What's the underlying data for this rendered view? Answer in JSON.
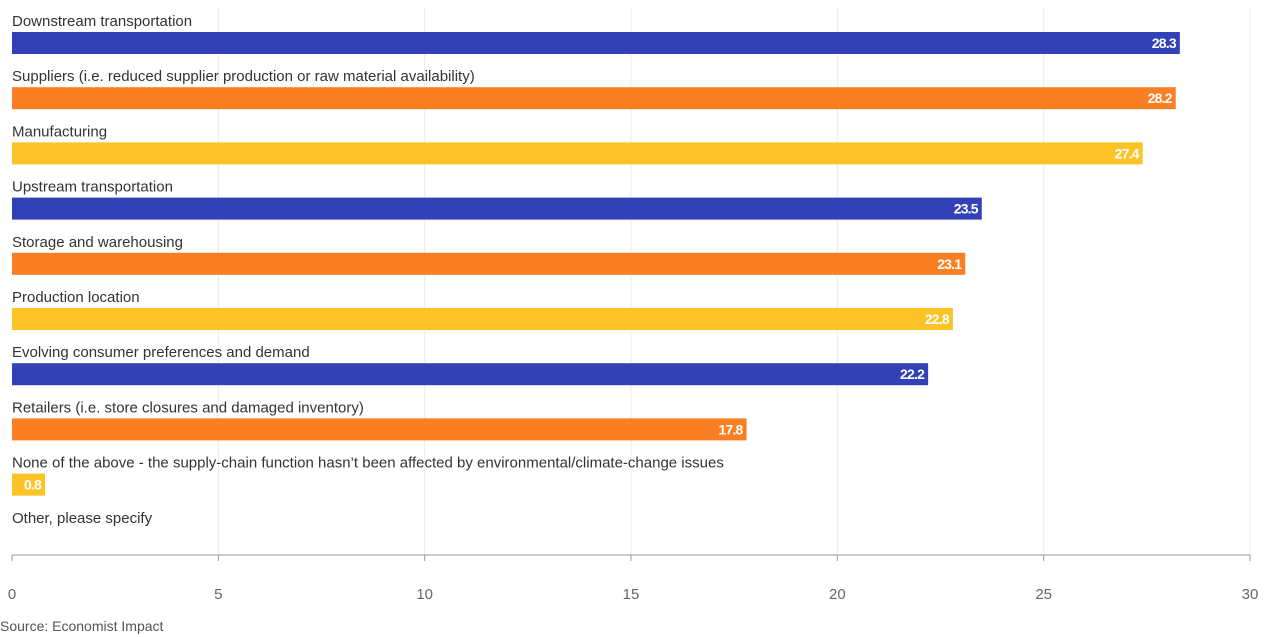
{
  "chart_data": {
    "type": "bar",
    "orientation": "horizontal",
    "categories": [
      "Downstream transportation",
      "Suppliers (i.e. reduced supplier production or raw material availability)",
      "Manufacturing",
      "Upstream transportation",
      "Storage and warehousing",
      "Production location",
      "Evolving consumer preferences and demand",
      "Retailers (i.e. store closures and damaged inventory)",
      "None of the above - the supply-chain function hasn’t been affected by environmental/climate-change issues",
      "Other, please specify"
    ],
    "values": [
      28.3,
      28.2,
      27.4,
      23.5,
      23.1,
      22.8,
      22.2,
      17.8,
      0.8,
      null
    ],
    "value_labels": [
      "28.3",
      "28.2",
      "27.4",
      "23.5",
      "23.1",
      "22.8",
      "22.2",
      "17.8",
      "0.8",
      ""
    ],
    "bar_colors": [
      "#3341b7",
      "#f97f22",
      "#fbc325",
      "#3341b7",
      "#f97f22",
      "#fbc325",
      "#3341b7",
      "#f97f22",
      "#fbc325",
      "#3341b7"
    ],
    "xlim": [
      0,
      30
    ],
    "xticks": [
      0,
      5,
      10,
      15,
      20,
      25,
      30
    ],
    "grid": true,
    "title": "",
    "xlabel": "",
    "ylabel": ""
  },
  "source": "Source: Economist Impact"
}
